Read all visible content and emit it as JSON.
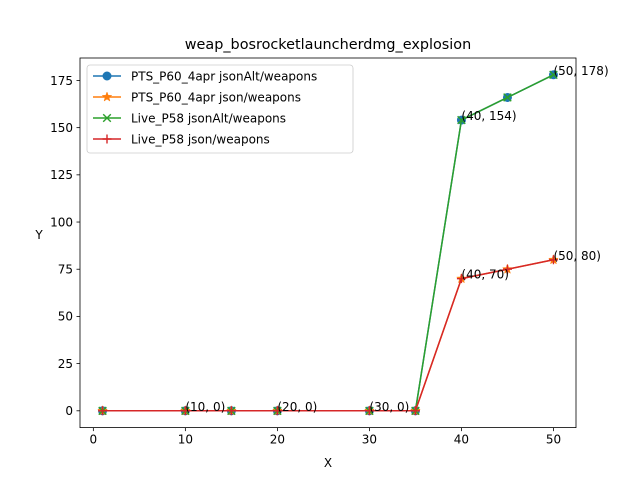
{
  "chart_data": {
    "type": "line",
    "title": "weap_bosrocketlauncherdmg_explosion",
    "xlabel": "X",
    "ylabel": "Y",
    "xlim": [
      -1.45,
      52.45
    ],
    "ylim": [
      -8.9,
      186.9
    ],
    "xticks": [
      0,
      10,
      20,
      30,
      40,
      50
    ],
    "yticks": [
      0,
      25,
      50,
      75,
      100,
      125,
      150,
      175
    ],
    "xtick_labels": [
      "0",
      "10",
      "20",
      "30",
      "40",
      "50"
    ],
    "ytick_labels": [
      "0",
      "25",
      "50",
      "75",
      "100",
      "125",
      "150",
      "175"
    ],
    "grid": false,
    "legend_position": "upper-left",
    "series": [
      {
        "name": "PTS_P60_4apr jsonAlt/weapons",
        "color": "#1f77b4",
        "marker": "circle",
        "x": [
          1,
          10,
          15,
          20,
          30,
          35,
          40,
          45,
          50
        ],
        "y": [
          0,
          0,
          0,
          0,
          0,
          0,
          154,
          166,
          178
        ]
      },
      {
        "name": "PTS_P60_4apr json/weapons",
        "color": "#ff7f0e",
        "marker": "star",
        "x": [
          1,
          10,
          15,
          20,
          30,
          35,
          40,
          45,
          50
        ],
        "y": [
          0,
          0,
          0,
          0,
          0,
          0,
          70,
          75,
          80
        ]
      },
      {
        "name": "Live_P58 jsonAlt/weapons",
        "color": "#2ca02c",
        "marker": "x",
        "x": [
          1,
          10,
          15,
          20,
          30,
          35,
          40,
          45,
          50
        ],
        "y": [
          0,
          0,
          0,
          0,
          0,
          0,
          154,
          166,
          178
        ]
      },
      {
        "name": "Live_P58 json/weapons",
        "color": "#d62728",
        "marker": "plus",
        "x": [
          1,
          10,
          15,
          20,
          30,
          35,
          40,
          45,
          50
        ],
        "y": [
          0,
          0,
          0,
          0,
          0,
          0,
          70,
          75,
          80
        ]
      }
    ],
    "annotations": [
      {
        "x": 10,
        "y": 0,
        "text": "(10, 0)"
      },
      {
        "x": 20,
        "y": 0,
        "text": "(20, 0)"
      },
      {
        "x": 30,
        "y": 0,
        "text": "(30, 0)"
      },
      {
        "x": 40,
        "y": 154,
        "text": "(40, 154)"
      },
      {
        "x": 50,
        "y": 178,
        "text": "(50, 178)"
      },
      {
        "x": 40,
        "y": 70,
        "text": "(40, 70)"
      },
      {
        "x": 50,
        "y": 80,
        "text": "(50, 80)"
      }
    ]
  }
}
